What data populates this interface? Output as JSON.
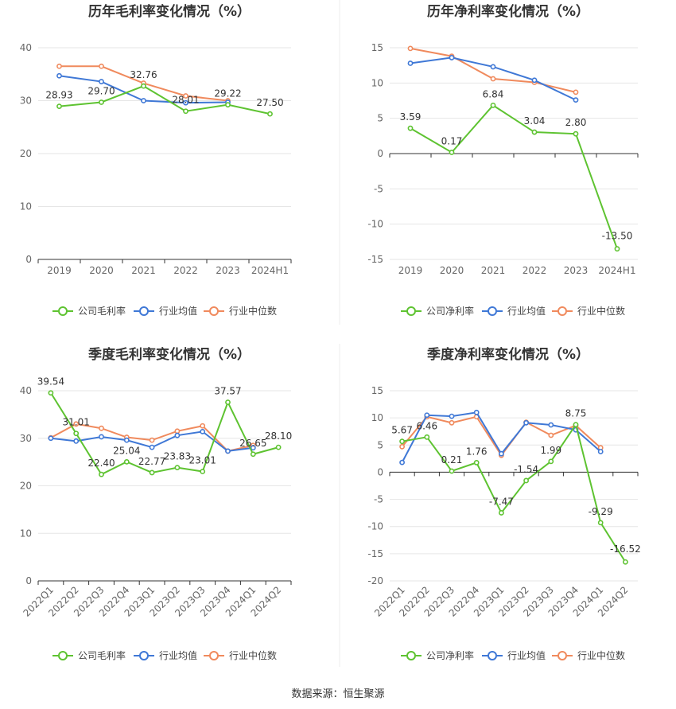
{
  "source": "数据来源：恒生聚源",
  "legend_labels": [
    "行业均值",
    "行业中位数"
  ],
  "colors": {
    "company": "#5ec331",
    "mean": "#3f78d6",
    "median": "#f08a5d",
    "grid": "#e6e6e6",
    "axis": "#333333"
  },
  "chart_data": [
    {
      "type": "line",
      "title": "历年毛利率变化情况（%）",
      "categories": [
        "2019",
        "2020",
        "2021",
        "2022",
        "2023",
        "2024H1"
      ],
      "ylim": [
        0,
        40
      ],
      "yticks": [
        0,
        10,
        20,
        30,
        40
      ],
      "grid": true,
      "legend_position": "bottom",
      "series": [
        {
          "name": "公司毛利率",
          "role": "company",
          "values": [
            28.93,
            29.7,
            32.76,
            28.01,
            29.22,
            27.5
          ],
          "labels": [
            "28.93",
            "29.70",
            "32.76",
            "28.01",
            "29.22",
            "27.50"
          ]
        },
        {
          "name": "行业均值",
          "role": "mean",
          "values": [
            34.7,
            33.6,
            30.0,
            29.6,
            29.7,
            null
          ]
        },
        {
          "name": "行业中位数",
          "role": "median",
          "values": [
            36.5,
            36.5,
            33.3,
            30.9,
            30.0,
            null
          ]
        }
      ]
    },
    {
      "type": "line",
      "title": "历年净利率变化情况（%）",
      "categories": [
        "2019",
        "2020",
        "2021",
        "2022",
        "2023",
        "2024H1"
      ],
      "ylim": [
        -15,
        15
      ],
      "yticks": [
        -15,
        -10,
        -5,
        0,
        5,
        10,
        15
      ],
      "grid": true,
      "legend_position": "bottom",
      "series": [
        {
          "name": "公司净利率",
          "role": "company",
          "values": [
            3.59,
            0.17,
            6.84,
            3.04,
            2.8,
            -13.5
          ],
          "labels": [
            "3.59",
            "0.17",
            "6.84",
            "3.04",
            "2.80",
            "-13.50"
          ]
        },
        {
          "name": "行业均值",
          "role": "mean",
          "values": [
            12.8,
            13.6,
            12.3,
            10.4,
            7.6,
            null
          ]
        },
        {
          "name": "行业中位数",
          "role": "median",
          "values": [
            14.9,
            13.8,
            10.6,
            10.1,
            8.7,
            null
          ]
        }
      ]
    },
    {
      "type": "line",
      "title": "季度毛利率变化情况（%）",
      "categories": [
        "2022Q1",
        "2022Q2",
        "2022Q3",
        "2022Q4",
        "2023Q1",
        "2023Q2",
        "2023Q3",
        "2023Q4",
        "2024Q1",
        "2024Q2"
      ],
      "ylim": [
        0,
        40
      ],
      "yticks": [
        0,
        10,
        20,
        30,
        40
      ],
      "grid": true,
      "legend_position": "bottom",
      "series": [
        {
          "name": "公司毛利率",
          "role": "company",
          "values": [
            39.54,
            31.01,
            22.4,
            25.04,
            22.77,
            23.83,
            23.01,
            37.57,
            26.65,
            28.1
          ],
          "labels": [
            "39.54",
            "31.01",
            "22.40",
            "25.04",
            "22.77",
            "23.83",
            "23.01",
            "37.57",
            "26.65",
            "28.10"
          ]
        },
        {
          "name": "行业均值",
          "role": "mean",
          "values": [
            30.0,
            29.4,
            30.3,
            29.6,
            28.1,
            30.6,
            31.4,
            27.3,
            28.0,
            null
          ]
        },
        {
          "name": "行业中位数",
          "role": "median",
          "values": [
            30.1,
            33.0,
            32.1,
            30.2,
            29.6,
            31.5,
            32.6,
            27.3,
            28.5,
            null
          ]
        }
      ]
    },
    {
      "type": "line",
      "title": "季度净利率变化情况（%）",
      "categories": [
        "2022Q1",
        "2022Q2",
        "2022Q3",
        "2022Q4",
        "2023Q1",
        "2023Q2",
        "2023Q3",
        "2023Q4",
        "2024Q1",
        "2024Q2"
      ],
      "ylim": [
        -20,
        15
      ],
      "yticks": [
        -20,
        -15,
        -10,
        -5,
        0,
        5,
        10,
        15
      ],
      "grid": true,
      "legend_position": "bottom",
      "series": [
        {
          "name": "公司净利率",
          "role": "company",
          "values": [
            5.67,
            6.46,
            0.21,
            1.76,
            -7.47,
            -1.54,
            1.99,
            8.75,
            -9.29,
            -16.52
          ],
          "labels": [
            "5.67",
            "6.46",
            "0.21",
            "1.76",
            "-7.47",
            "-1.54",
            "1.99",
            "8.75",
            "-9.29",
            "-16.52"
          ]
        },
        {
          "name": "行业均值",
          "role": "mean",
          "values": [
            1.8,
            10.5,
            10.3,
            11.0,
            3.4,
            9.1,
            8.7,
            7.8,
            3.8,
            null
          ]
        },
        {
          "name": "行业中位数",
          "role": "median",
          "values": [
            4.7,
            10.2,
            9.1,
            10.2,
            3.1,
            9.2,
            6.8,
            8.6,
            4.5,
            null
          ]
        }
      ]
    }
  ]
}
